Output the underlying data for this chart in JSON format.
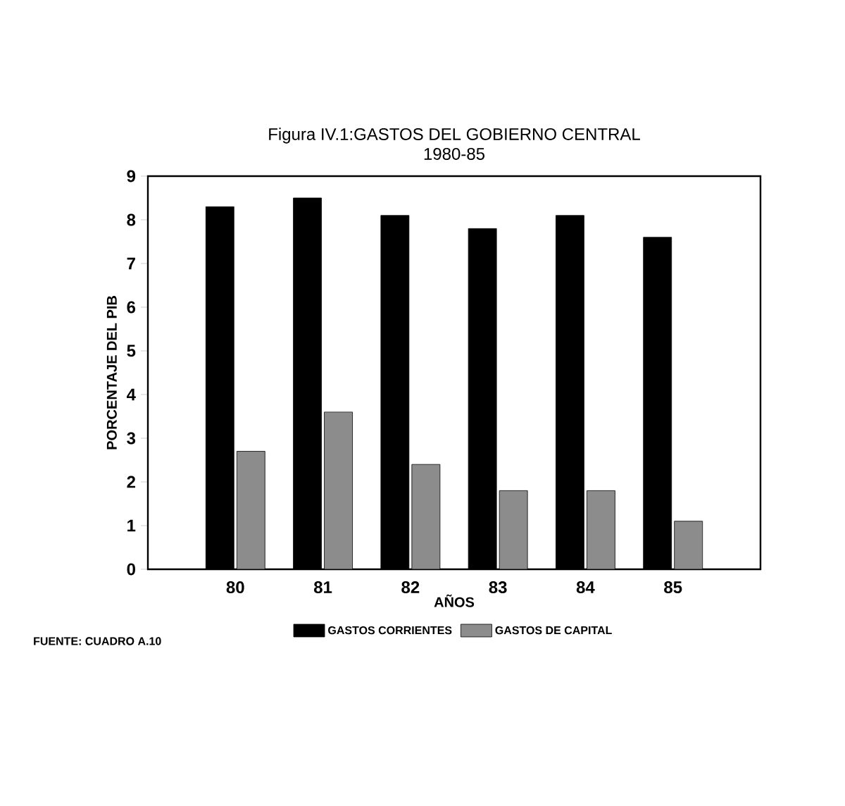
{
  "chart_data": {
    "type": "bar",
    "title": "Figura IV.1:GASTOS DEL GOBIERNO CENTRAL",
    "subtitle": "1980-85",
    "xlabel": "AÑOS",
    "ylabel": "PORCENTAJE DEL PIB",
    "categories": [
      "80",
      "81",
      "82",
      "83",
      "84",
      "85"
    ],
    "series": [
      {
        "name": "GASTOS CORRIENTES",
        "color": "#000000",
        "values": [
          8.3,
          8.5,
          8.1,
          7.8,
          8.1,
          7.6
        ]
      },
      {
        "name": "GASTOS DE CAPITAL",
        "color": "#8c8c8c",
        "values": [
          2.7,
          3.6,
          2.4,
          1.8,
          1.8,
          1.1
        ]
      }
    ],
    "ylim": [
      0,
      9
    ],
    "yticks": [
      0,
      1,
      2,
      3,
      4,
      5,
      6,
      7,
      8,
      9
    ],
    "grid": false,
    "legend": "bottom",
    "annotations": [
      "FUENTE: CUADRO A.10"
    ]
  }
}
